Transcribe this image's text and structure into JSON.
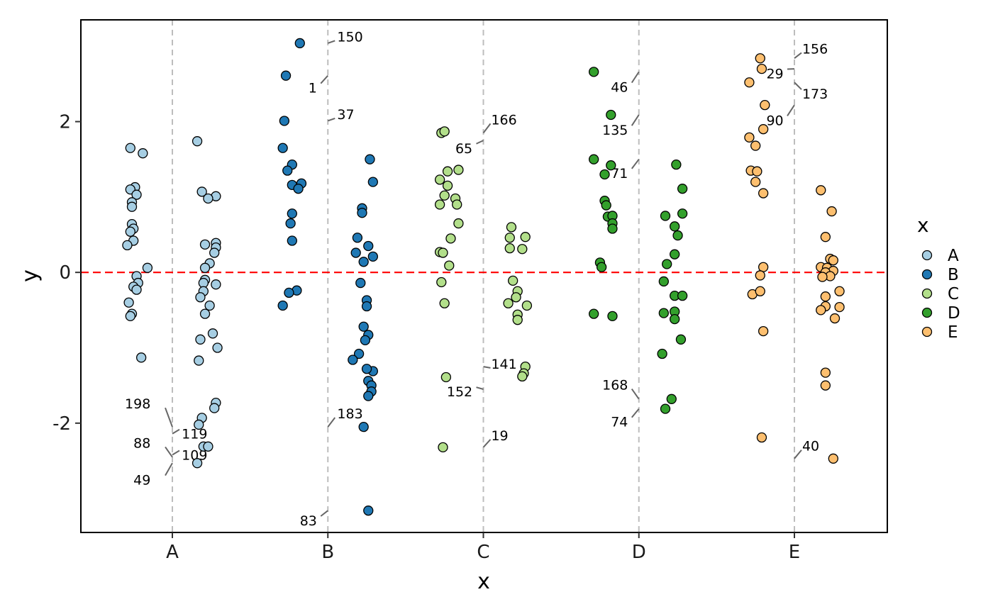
{
  "chart_data": {
    "type": "scatter",
    "xlabel": "x",
    "ylabel": "y",
    "categories": [
      "A",
      "B",
      "C",
      "D",
      "E"
    ],
    "ylim": [
      -3.45,
      3.35
    ],
    "y_ticks": [
      -2,
      0,
      2
    ],
    "y_tick_labels": [
      "-2",
      "0",
      "2"
    ],
    "reference_line": {
      "y": 0,
      "color": "#ff0000",
      "style": "dashed"
    },
    "category_lines": {
      "color": "#bdbdbd",
      "style": "dashed"
    },
    "legend": {
      "title": "x",
      "entries": [
        "A",
        "B",
        "C",
        "D",
        "E"
      ],
      "position": "right"
    },
    "colors": {
      "A": "#a6cee3",
      "B": "#1f78b4",
      "C": "#b2df8a",
      "D": "#33a02c",
      "E": "#fdbf6f"
    },
    "series": [
      {
        "name": "A",
        "points": [
          [
            -0.27,
            1.65
          ],
          [
            -0.19,
            1.58
          ],
          [
            -0.24,
            1.13
          ],
          [
            -0.27,
            1.1
          ],
          [
            -0.23,
            1.03
          ],
          [
            -0.26,
            0.93
          ],
          [
            -0.26,
            0.87
          ],
          [
            -0.26,
            0.64
          ],
          [
            -0.25,
            0.58
          ],
          [
            -0.27,
            0.54
          ],
          [
            -0.25,
            0.42
          ],
          [
            -0.29,
            0.36
          ],
          [
            -0.16,
            0.06
          ],
          [
            -0.23,
            -0.05
          ],
          [
            -0.22,
            -0.14
          ],
          [
            -0.25,
            -0.19
          ],
          [
            -0.23,
            -0.23
          ],
          [
            -0.28,
            -0.4
          ],
          [
            -0.26,
            -0.55
          ],
          [
            -0.27,
            -0.58
          ],
          [
            -0.2,
            -1.13
          ],
          [
            0.16,
            1.74
          ],
          [
            0.19,
            1.07
          ],
          [
            0.28,
            1.01
          ],
          [
            0.23,
            0.98
          ],
          [
            0.28,
            0.39
          ],
          [
            0.21,
            0.37
          ],
          [
            0.28,
            0.33
          ],
          [
            0.27,
            0.26
          ],
          [
            0.24,
            0.12
          ],
          [
            0.21,
            0.06
          ],
          [
            0.21,
            -0.1
          ],
          [
            0.2,
            -0.14
          ],
          [
            0.28,
            -0.16
          ],
          [
            0.2,
            -0.25
          ],
          [
            0.18,
            -0.33
          ],
          [
            0.24,
            -0.44
          ],
          [
            0.21,
            -0.55
          ],
          [
            0.26,
            -0.81
          ],
          [
            0.18,
            -0.89
          ],
          [
            0.29,
            -1.0
          ],
          [
            0.17,
            -1.17
          ],
          [
            0.28,
            -1.73
          ],
          [
            0.27,
            -1.8
          ],
          [
            0.19,
            -1.93
          ],
          [
            0.17,
            -2.02
          ],
          [
            0.2,
            -2.31
          ],
          [
            0.23,
            -2.31
          ],
          [
            0.16,
            -2.53
          ]
        ]
      },
      {
        "name": "B",
        "points": [
          [
            -0.18,
            3.04
          ],
          [
            -0.27,
            2.61
          ],
          [
            -0.28,
            2.01
          ],
          [
            -0.29,
            1.65
          ],
          [
            -0.23,
            1.43
          ],
          [
            -0.26,
            1.35
          ],
          [
            -0.17,
            1.18
          ],
          [
            -0.23,
            1.16
          ],
          [
            -0.19,
            1.11
          ],
          [
            -0.23,
            0.78
          ],
          [
            -0.24,
            0.65
          ],
          [
            -0.23,
            0.42
          ],
          [
            -0.2,
            -0.24
          ],
          [
            -0.25,
            -0.27
          ],
          [
            -0.29,
            -0.44
          ],
          [
            0.27,
            1.5
          ],
          [
            0.29,
            1.2
          ],
          [
            0.22,
            0.85
          ],
          [
            0.22,
            0.79
          ],
          [
            0.19,
            0.46
          ],
          [
            0.26,
            0.35
          ],
          [
            0.18,
            0.26
          ],
          [
            0.29,
            0.21
          ],
          [
            0.23,
            0.14
          ],
          [
            0.21,
            -0.14
          ],
          [
            0.25,
            -0.37
          ],
          [
            0.25,
            -0.45
          ],
          [
            0.23,
            -0.72
          ],
          [
            0.26,
            -0.83
          ],
          [
            0.24,
            -0.9
          ],
          [
            0.2,
            -1.08
          ],
          [
            0.16,
            -1.16
          ],
          [
            0.29,
            -1.31
          ],
          [
            0.25,
            -1.28
          ],
          [
            0.26,
            -1.44
          ],
          [
            0.28,
            -1.5
          ],
          [
            0.28,
            -1.58
          ],
          [
            0.26,
            -1.64
          ],
          [
            0.23,
            -2.05
          ],
          [
            0.26,
            -3.16
          ]
        ]
      },
      {
        "name": "C",
        "points": [
          [
            -0.27,
            1.85
          ],
          [
            -0.25,
            1.87
          ],
          [
            -0.23,
            1.34
          ],
          [
            -0.16,
            1.36
          ],
          [
            -0.28,
            1.23
          ],
          [
            -0.23,
            1.15
          ],
          [
            -0.25,
            1.02
          ],
          [
            -0.18,
            0.98
          ],
          [
            -0.28,
            0.9
          ],
          [
            -0.17,
            0.9
          ],
          [
            -0.16,
            0.65
          ],
          [
            -0.21,
            0.45
          ],
          [
            -0.28,
            0.27
          ],
          [
            -0.26,
            0.26
          ],
          [
            -0.22,
            0.09
          ],
          [
            -0.27,
            -0.13
          ],
          [
            -0.25,
            -0.41
          ],
          [
            -0.24,
            -1.39
          ],
          [
            -0.26,
            -2.32
          ],
          [
            0.18,
            0.6
          ],
          [
            0.27,
            0.47
          ],
          [
            0.17,
            0.46
          ],
          [
            0.17,
            0.32
          ],
          [
            0.25,
            0.31
          ],
          [
            0.19,
            -0.11
          ],
          [
            0.22,
            -0.25
          ],
          [
            0.21,
            -0.33
          ],
          [
            0.28,
            -0.44
          ],
          [
            0.16,
            -0.41
          ],
          [
            0.22,
            -0.56
          ],
          [
            0.22,
            -0.63
          ],
          [
            0.27,
            -1.25
          ],
          [
            0.26,
            -1.34
          ],
          [
            0.25,
            -1.38
          ]
        ]
      },
      {
        "name": "D",
        "points": [
          [
            -0.29,
            2.66
          ],
          [
            -0.18,
            2.09
          ],
          [
            -0.29,
            1.5
          ],
          [
            -0.18,
            1.42
          ],
          [
            -0.22,
            1.3
          ],
          [
            -0.22,
            0.95
          ],
          [
            -0.21,
            0.89
          ],
          [
            -0.2,
            0.74
          ],
          [
            -0.17,
            0.75
          ],
          [
            -0.17,
            0.65
          ],
          [
            -0.17,
            0.58
          ],
          [
            -0.25,
            0.13
          ],
          [
            -0.24,
            0.07
          ],
          [
            -0.29,
            -0.55
          ],
          [
            -0.17,
            -0.58
          ],
          [
            0.24,
            1.43
          ],
          [
            0.28,
            1.11
          ],
          [
            0.28,
            0.78
          ],
          [
            0.17,
            0.75
          ],
          [
            0.23,
            0.61
          ],
          [
            0.25,
            0.49
          ],
          [
            0.23,
            0.24
          ],
          [
            0.18,
            0.11
          ],
          [
            0.16,
            -0.12
          ],
          [
            0.23,
            -0.31
          ],
          [
            0.28,
            -0.31
          ],
          [
            0.23,
            -0.52
          ],
          [
            0.16,
            -0.54
          ],
          [
            0.23,
            -0.62
          ],
          [
            0.27,
            -0.89
          ],
          [
            0.15,
            -1.08
          ],
          [
            0.21,
            -1.68
          ],
          [
            0.17,
            -1.81
          ]
        ]
      },
      {
        "name": "E",
        "points": [
          [
            -0.22,
            2.84
          ],
          [
            -0.21,
            2.7
          ],
          [
            -0.29,
            2.52
          ],
          [
            -0.19,
            2.22
          ],
          [
            -0.2,
            1.9
          ],
          [
            -0.29,
            1.79
          ],
          [
            -0.25,
            1.68
          ],
          [
            -0.28,
            1.35
          ],
          [
            -0.24,
            1.34
          ],
          [
            -0.25,
            1.2
          ],
          [
            -0.2,
            1.05
          ],
          [
            -0.2,
            0.07
          ],
          [
            -0.22,
            -0.04
          ],
          [
            -0.27,
            -0.29
          ],
          [
            -0.22,
            -0.25
          ],
          [
            -0.2,
            -0.78
          ],
          [
            -0.21,
            -2.19
          ],
          [
            0.17,
            1.09
          ],
          [
            0.24,
            0.81
          ],
          [
            0.2,
            0.47
          ],
          [
            0.23,
            0.18
          ],
          [
            0.25,
            0.16
          ],
          [
            0.17,
            0.07
          ],
          [
            0.21,
            0.06
          ],
          [
            0.25,
            0.02
          ],
          [
            0.2,
            0.0
          ],
          [
            0.23,
            -0.05
          ],
          [
            0.18,
            -0.06
          ],
          [
            0.29,
            -0.25
          ],
          [
            0.2,
            -0.32
          ],
          [
            0.2,
            -0.45
          ],
          [
            0.29,
            -0.46
          ],
          [
            0.17,
            -0.5
          ],
          [
            0.26,
            -0.61
          ],
          [
            0.2,
            -1.33
          ],
          [
            0.2,
            -1.5
          ],
          [
            0.25,
            -2.47
          ]
        ]
      }
    ],
    "annotations": [
      {
        "label": "198",
        "category": "A",
        "y": -2.05,
        "ly": -1.74,
        "lx": -0.14
      },
      {
        "label": "119",
        "category": "A",
        "y": -2.14,
        "ly": -2.14,
        "lx": 0.06
      },
      {
        "label": "88",
        "category": "A",
        "y": -2.45,
        "ly": -2.26,
        "lx": -0.14
      },
      {
        "label": "109",
        "category": "A",
        "y": -2.42,
        "ly": -2.42,
        "lx": 0.06
      },
      {
        "label": "49",
        "category": "A",
        "y": -2.53,
        "ly": -2.75,
        "lx": -0.14
      },
      {
        "label": "150",
        "category": "B",
        "y": 3.04,
        "ly": 3.13,
        "lx": 0.06
      },
      {
        "label": "1",
        "category": "B",
        "y": 2.61,
        "ly": 2.45,
        "lx": -0.07
      },
      {
        "label": "37",
        "category": "B",
        "y": 2.01,
        "ly": 2.1,
        "lx": 0.06
      },
      {
        "label": "183",
        "category": "B",
        "y": -2.05,
        "ly": -1.87,
        "lx": 0.06
      },
      {
        "label": "83",
        "category": "B",
        "y": -3.16,
        "ly": -3.29,
        "lx": -0.07
      },
      {
        "label": "166",
        "category": "C",
        "y": 1.85,
        "ly": 2.03,
        "lx": 0.05
      },
      {
        "label": "65",
        "category": "C",
        "y": 1.75,
        "ly": 1.65,
        "lx": -0.07
      },
      {
        "label": "141",
        "category": "C",
        "y": -1.25,
        "ly": -1.21,
        "lx": 0.05
      },
      {
        "label": "152",
        "category": "C",
        "y": -1.55,
        "ly": -1.58,
        "lx": -0.07
      },
      {
        "label": "19",
        "category": "C",
        "y": -2.32,
        "ly": -2.16,
        "lx": 0.05
      },
      {
        "label": "46",
        "category": "D",
        "y": 2.66,
        "ly": 2.46,
        "lx": -0.07
      },
      {
        "label": "135",
        "category": "D",
        "y": 2.09,
        "ly": 1.89,
        "lx": -0.07
      },
      {
        "label": "71",
        "category": "D",
        "y": 1.5,
        "ly": 1.32,
        "lx": -0.07
      },
      {
        "label": "168",
        "category": "D",
        "y": -1.68,
        "ly": -1.49,
        "lx": -0.07
      },
      {
        "label": "74",
        "category": "D",
        "y": -1.81,
        "ly": -1.98,
        "lx": -0.07
      },
      {
        "label": "156",
        "category": "E",
        "y": 2.84,
        "ly": 2.97,
        "lx": 0.05
      },
      {
        "label": "29",
        "category": "E",
        "y": 2.7,
        "ly": 2.64,
        "lx": -0.07
      },
      {
        "label": "173",
        "category": "E",
        "y": 2.52,
        "ly": 2.37,
        "lx": 0.05
      },
      {
        "label": "90",
        "category": "E",
        "y": 2.22,
        "ly": 2.02,
        "lx": -0.07
      },
      {
        "label": "40",
        "category": "E",
        "y": -2.47,
        "ly": -2.3,
        "lx": 0.05
      }
    ]
  }
}
